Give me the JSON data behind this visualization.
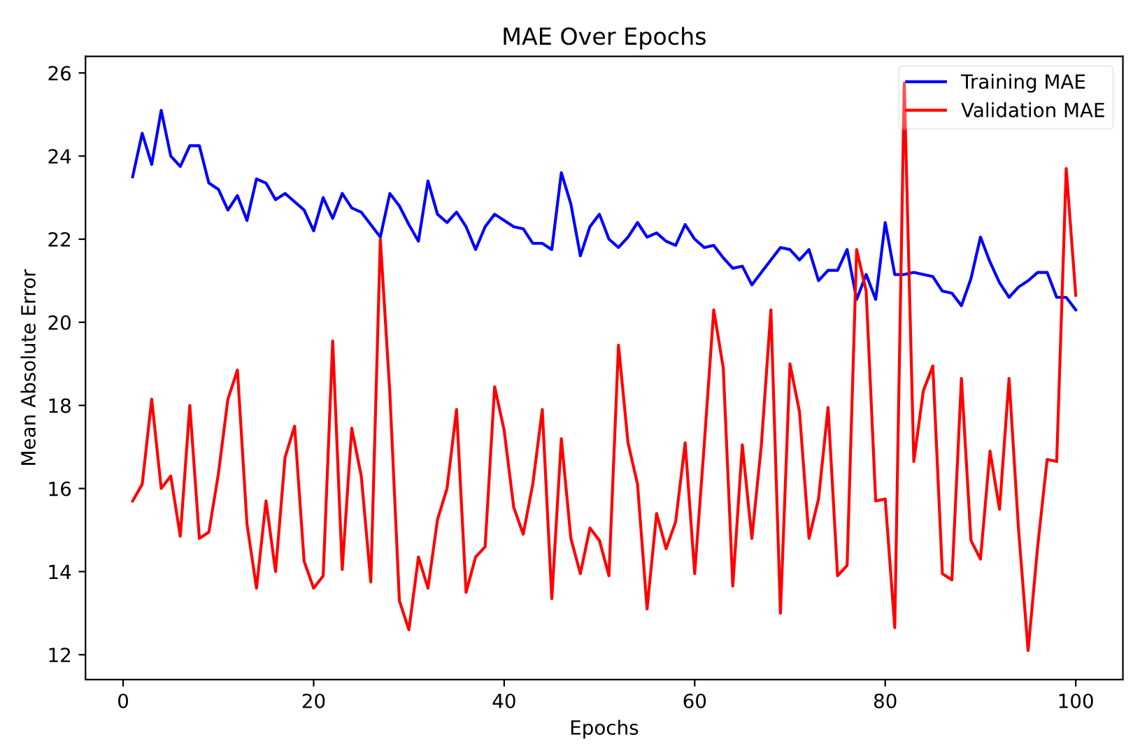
{
  "chart_data": {
    "type": "line",
    "title": "MAE Over Epochs",
    "xlabel": "Epochs",
    "ylabel": "Mean Absolute Error",
    "x": [
      1,
      2,
      3,
      4,
      5,
      6,
      7,
      8,
      9,
      10,
      11,
      12,
      13,
      14,
      15,
      16,
      17,
      18,
      19,
      20,
      21,
      22,
      23,
      24,
      25,
      26,
      27,
      28,
      29,
      30,
      31,
      32,
      33,
      34,
      35,
      36,
      37,
      38,
      39,
      40,
      41,
      42,
      43,
      44,
      45,
      46,
      47,
      48,
      49,
      50,
      51,
      52,
      53,
      54,
      55,
      56,
      57,
      58,
      59,
      60,
      61,
      62,
      63,
      64,
      65,
      66,
      67,
      68,
      69,
      70,
      71,
      72,
      73,
      74,
      75,
      76,
      77,
      78,
      79,
      80,
      81,
      82,
      83,
      84,
      85,
      86,
      87,
      88,
      89,
      90,
      91,
      92,
      93,
      94,
      95,
      96,
      97,
      98,
      99,
      100
    ],
    "series": [
      {
        "name": "Training MAE",
        "color": "#0000ff",
        "values": [
          23.5,
          24.55,
          23.8,
          25.1,
          24.0,
          23.75,
          24.25,
          24.25,
          23.35,
          23.2,
          22.7,
          23.05,
          22.45,
          23.45,
          23.35,
          22.95,
          23.1,
          22.9,
          22.7,
          22.2,
          23.0,
          22.5,
          23.1,
          22.75,
          22.65,
          22.35,
          22.05,
          23.1,
          22.8,
          22.35,
          21.95,
          23.4,
          22.6,
          22.4,
          22.65,
          22.3,
          21.75,
          22.3,
          22.6,
          22.45,
          22.3,
          22.25,
          21.9,
          21.9,
          21.75,
          23.6,
          22.85,
          21.6,
          22.3,
          22.6,
          22.0,
          21.8,
          22.05,
          22.4,
          22.05,
          22.15,
          21.95,
          21.85,
          22.35,
          22.0,
          21.8,
          21.85,
          21.55,
          21.3,
          21.35,
          20.9,
          21.2,
          21.5,
          21.8,
          21.75,
          21.5,
          21.75,
          21.0,
          21.25,
          21.25,
          21.75,
          20.55,
          21.15,
          20.55,
          22.4,
          21.15,
          21.15,
          21.2,
          21.15,
          21.1,
          20.75,
          20.7,
          20.4,
          21.05,
          22.05,
          21.45,
          20.95,
          20.6,
          20.85,
          21.0,
          21.2,
          21.2,
          20.6,
          20.6,
          20.3
        ]
      },
      {
        "name": "Validation MAE",
        "color": "#ff0000",
        "values": [
          15.7,
          16.1,
          18.15,
          16.0,
          16.3,
          14.85,
          18.0,
          14.8,
          14.95,
          16.35,
          18.15,
          18.85,
          15.15,
          13.6,
          15.7,
          14.0,
          16.75,
          17.5,
          14.25,
          13.6,
          13.9,
          19.55,
          14.05,
          17.45,
          16.3,
          13.75,
          22.0,
          18.3,
          13.3,
          12.6,
          14.35,
          13.6,
          15.25,
          16.0,
          17.9,
          13.5,
          14.35,
          14.6,
          18.45,
          17.4,
          15.55,
          14.9,
          16.1,
          17.9,
          13.35,
          17.2,
          14.8,
          13.95,
          15.05,
          14.75,
          13.9,
          19.45,
          17.1,
          16.1,
          13.1,
          15.4,
          14.55,
          15.2,
          17.1,
          13.95,
          17.05,
          20.3,
          18.9,
          13.65,
          17.05,
          14.8,
          17.05,
          20.3,
          13.0,
          19.0,
          17.85,
          14.8,
          15.75,
          17.95,
          13.9,
          14.15,
          21.75,
          20.75,
          15.7,
          15.75,
          12.65,
          25.75,
          16.65,
          18.35,
          18.95,
          13.95,
          13.8,
          18.65,
          14.75,
          14.3,
          16.9,
          15.5,
          18.65,
          15.0,
          12.1,
          14.6,
          16.7,
          16.65,
          23.7,
          20.65
        ]
      }
    ],
    "xlim": [
      -3.95,
      104.95
    ],
    "xticks": [
      0,
      20,
      40,
      60,
      80,
      100
    ],
    "ylim": [
      11.4,
      26.4
    ],
    "yticks": [
      12,
      14,
      16,
      18,
      20,
      22,
      24,
      26
    ],
    "legend": "top right",
    "grid": false,
    "marker": "none",
    "line_style": "solid"
  }
}
